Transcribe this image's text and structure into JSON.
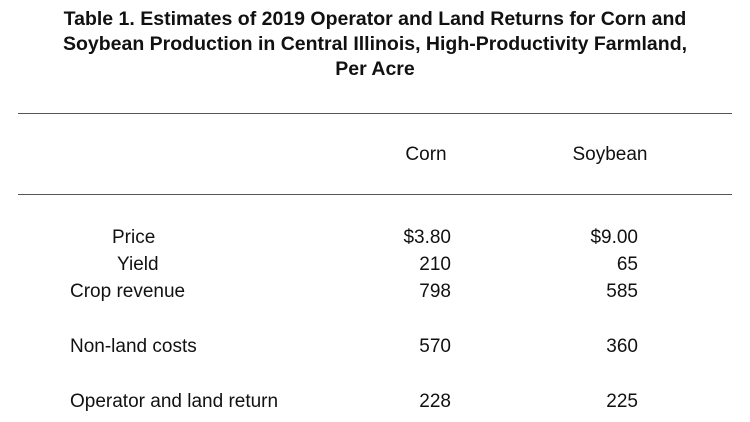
{
  "table": {
    "title_lines": [
      "Table 1. Estimates of 2019 Operator and Land Returns for Corn and",
      "Soybean Production in Central Illinois, High-Productivity Farmland,",
      "Per Acre"
    ],
    "columns": [
      "Corn",
      "Soybean"
    ],
    "rows": [
      {
        "label": "Price",
        "corn": "$3.80",
        "soybean": "$9.00"
      },
      {
        "label": "Yield",
        "corn": "210",
        "soybean": "65"
      },
      {
        "label": "Crop revenue",
        "corn": "798",
        "soybean": "585"
      },
      {
        "label": "Non-land costs",
        "corn": "570",
        "soybean": "360"
      },
      {
        "label": "Operator and land return",
        "corn": "228",
        "soybean": "225"
      }
    ]
  }
}
